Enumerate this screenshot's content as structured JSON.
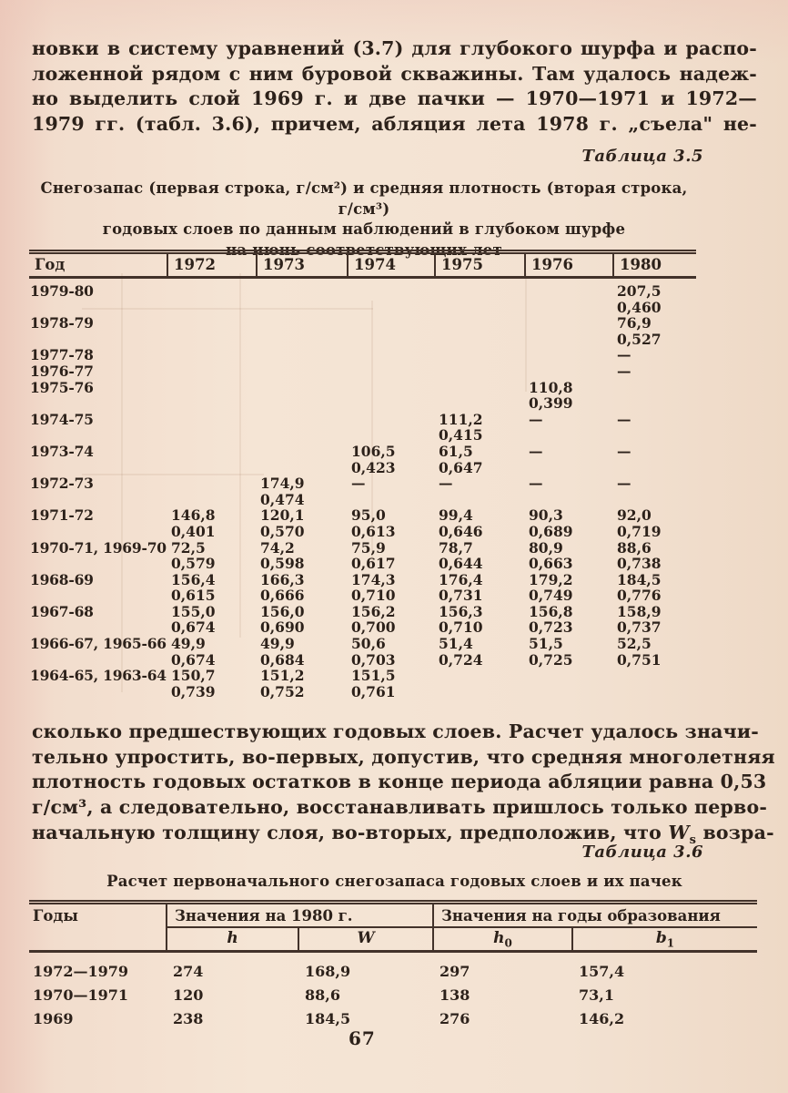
{
  "page": {
    "number": "67"
  },
  "paragraph_top": {
    "lines": [
      "новки в систему уравнений (3.7) для глубокого шурфа и распо-",
      "ложенной рядом с ним буровой скважины. Там удалось надеж-",
      "но выделить слой 1969 г. и две пачки — 1970—1971 и 1972—",
      "1979 гг. (табл. 3.6), причем, абляция лета 1978 г. „съела\" не-"
    ]
  },
  "table35": {
    "label": "Таблица 3.5",
    "caption_lines": [
      "Снегозапас (первая строка, г/см²) и средняя плотность (вторая строка, г/см³)",
      "годовых слоев по данным наблюдений в глубоком шурфе",
      "на июнь соответствующих лет"
    ],
    "columns": [
      "Год",
      "1972",
      "1973",
      "1974",
      "1975",
      "1976",
      "1980"
    ],
    "rows": [
      {
        "label": "1979-80",
        "snow": [
          "",
          "",
          "",
          "",
          "",
          "207,5"
        ],
        "density": [
          "",
          "",
          "",
          "",
          "",
          "0,460"
        ]
      },
      {
        "label": "1978-79",
        "snow": [
          "",
          "",
          "",
          "",
          "",
          "76,9"
        ],
        "density": [
          "",
          "",
          "",
          "",
          "",
          "0,527"
        ]
      },
      {
        "label": "1977-78",
        "snow": [
          "",
          "",
          "",
          "",
          "",
          "—"
        ],
        "density": null
      },
      {
        "label": "1976-77",
        "snow": [
          "",
          "",
          "",
          "",
          "",
          "—"
        ],
        "density": null
      },
      {
        "label": "1975-76",
        "snow": [
          "",
          "",
          "",
          "",
          "110,8",
          ""
        ],
        "density": [
          "",
          "",
          "",
          "",
          "0,399",
          ""
        ]
      },
      {
        "label": "1974-75",
        "snow": [
          "",
          "",
          "",
          "111,2",
          "—",
          "—"
        ],
        "density": [
          "",
          "",
          "",
          "0,415",
          "",
          ""
        ]
      },
      {
        "label": "1973-74",
        "snow": [
          "",
          "",
          "106,5",
          "61,5",
          "—",
          "—"
        ],
        "density": [
          "",
          "",
          "0,423",
          "0,647",
          "",
          ""
        ]
      },
      {
        "label": "1972-73",
        "snow": [
          "",
          "174,9",
          "—",
          "—",
          "—",
          "—"
        ],
        "density": [
          "",
          "0,474",
          "",
          "",
          "",
          ""
        ]
      },
      {
        "label": "1971-72",
        "snow": [
          "146,8",
          "120,1",
          "95,0",
          "99,4",
          "90,3",
          "92,0"
        ],
        "density": [
          "0,401",
          "0,570",
          "0,613",
          "0,646",
          "0,689",
          "0,719"
        ]
      },
      {
        "label": "1970-71, 1969-70",
        "snow": [
          "72,5",
          "74,2",
          "75,9",
          "78,7",
          "80,9",
          "88,6"
        ],
        "density": [
          "0,579",
          "0,598",
          "0,617",
          "0,644",
          "0,663",
          "0,738"
        ]
      },
      {
        "label": "1968-69",
        "snow": [
          "156,4",
          "166,3",
          "174,3",
          "176,4",
          "179,2",
          "184,5"
        ],
        "density": [
          "0,615",
          "0,666",
          "0,710",
          "0,731",
          "0,749",
          "0,776"
        ]
      },
      {
        "label": "1967-68",
        "snow": [
          "155,0",
          "156,0",
          "156,2",
          "156,3",
          "156,8",
          "158,9"
        ],
        "density": [
          "0,674",
          "0,690",
          "0,700",
          "0,710",
          "0,723",
          "0,737"
        ]
      },
      {
        "label": "1966-67, 1965-66",
        "snow": [
          "49,9",
          "49,9",
          "50,6",
          "51,4",
          "51,5",
          "52,5"
        ],
        "density": [
          "0,674",
          "0,684",
          "0,703",
          "0,724",
          "0,725",
          "0,751"
        ]
      },
      {
        "label": "1964-65, 1963-64",
        "snow": [
          "150,7",
          "151,2",
          "151,5",
          "",
          "",
          ""
        ],
        "density": [
          "0,739",
          "0,752",
          "0,761",
          "",
          "",
          ""
        ]
      }
    ]
  },
  "paragraph_middle": {
    "lines": [
      "сколько предшествующих годовых слоев. Расчет удалось значи-",
      "тельно упростить, во-первых, допустив, что средняя многолетняя",
      "плотность годовых остатков в конце периода абляции равна 0,53",
      "г/см³, а следовательно, восстанавливать пришлось только перво-"
    ],
    "last_line": {
      "before": "начальную толщину слоя, во-вторых, предположив, что ",
      "symbol": "W",
      "symbol_sub": "s",
      "after": " возра-"
    }
  },
  "table36": {
    "label": "Таблица 3.6",
    "caption": "Расчет первоначального снегозапаса годовых слоев и их пачек",
    "col_years": "Годы",
    "group1": "Значения на 1980 г.",
    "group2": "Значения на годы образования",
    "subcols": [
      {
        "b": "h",
        "s": ""
      },
      {
        "b": "W",
        "s": ""
      },
      {
        "b": "h",
        "s": "0"
      },
      {
        "b": "b",
        "s": "1"
      }
    ],
    "rows": [
      {
        "years": "1972—1979",
        "values": [
          "274",
          "168,9",
          "297",
          "157,4"
        ]
      },
      {
        "years": "1970—1971",
        "values": [
          "120",
          "88,6",
          "138",
          "73,1"
        ]
      },
      {
        "years": "1969",
        "values": [
          "238",
          "184,5",
          "276",
          "146,2"
        ]
      }
    ]
  },
  "colors": {
    "paper": "#f3e2d2",
    "ink": "#2c211a",
    "rule": "#42322a"
  }
}
